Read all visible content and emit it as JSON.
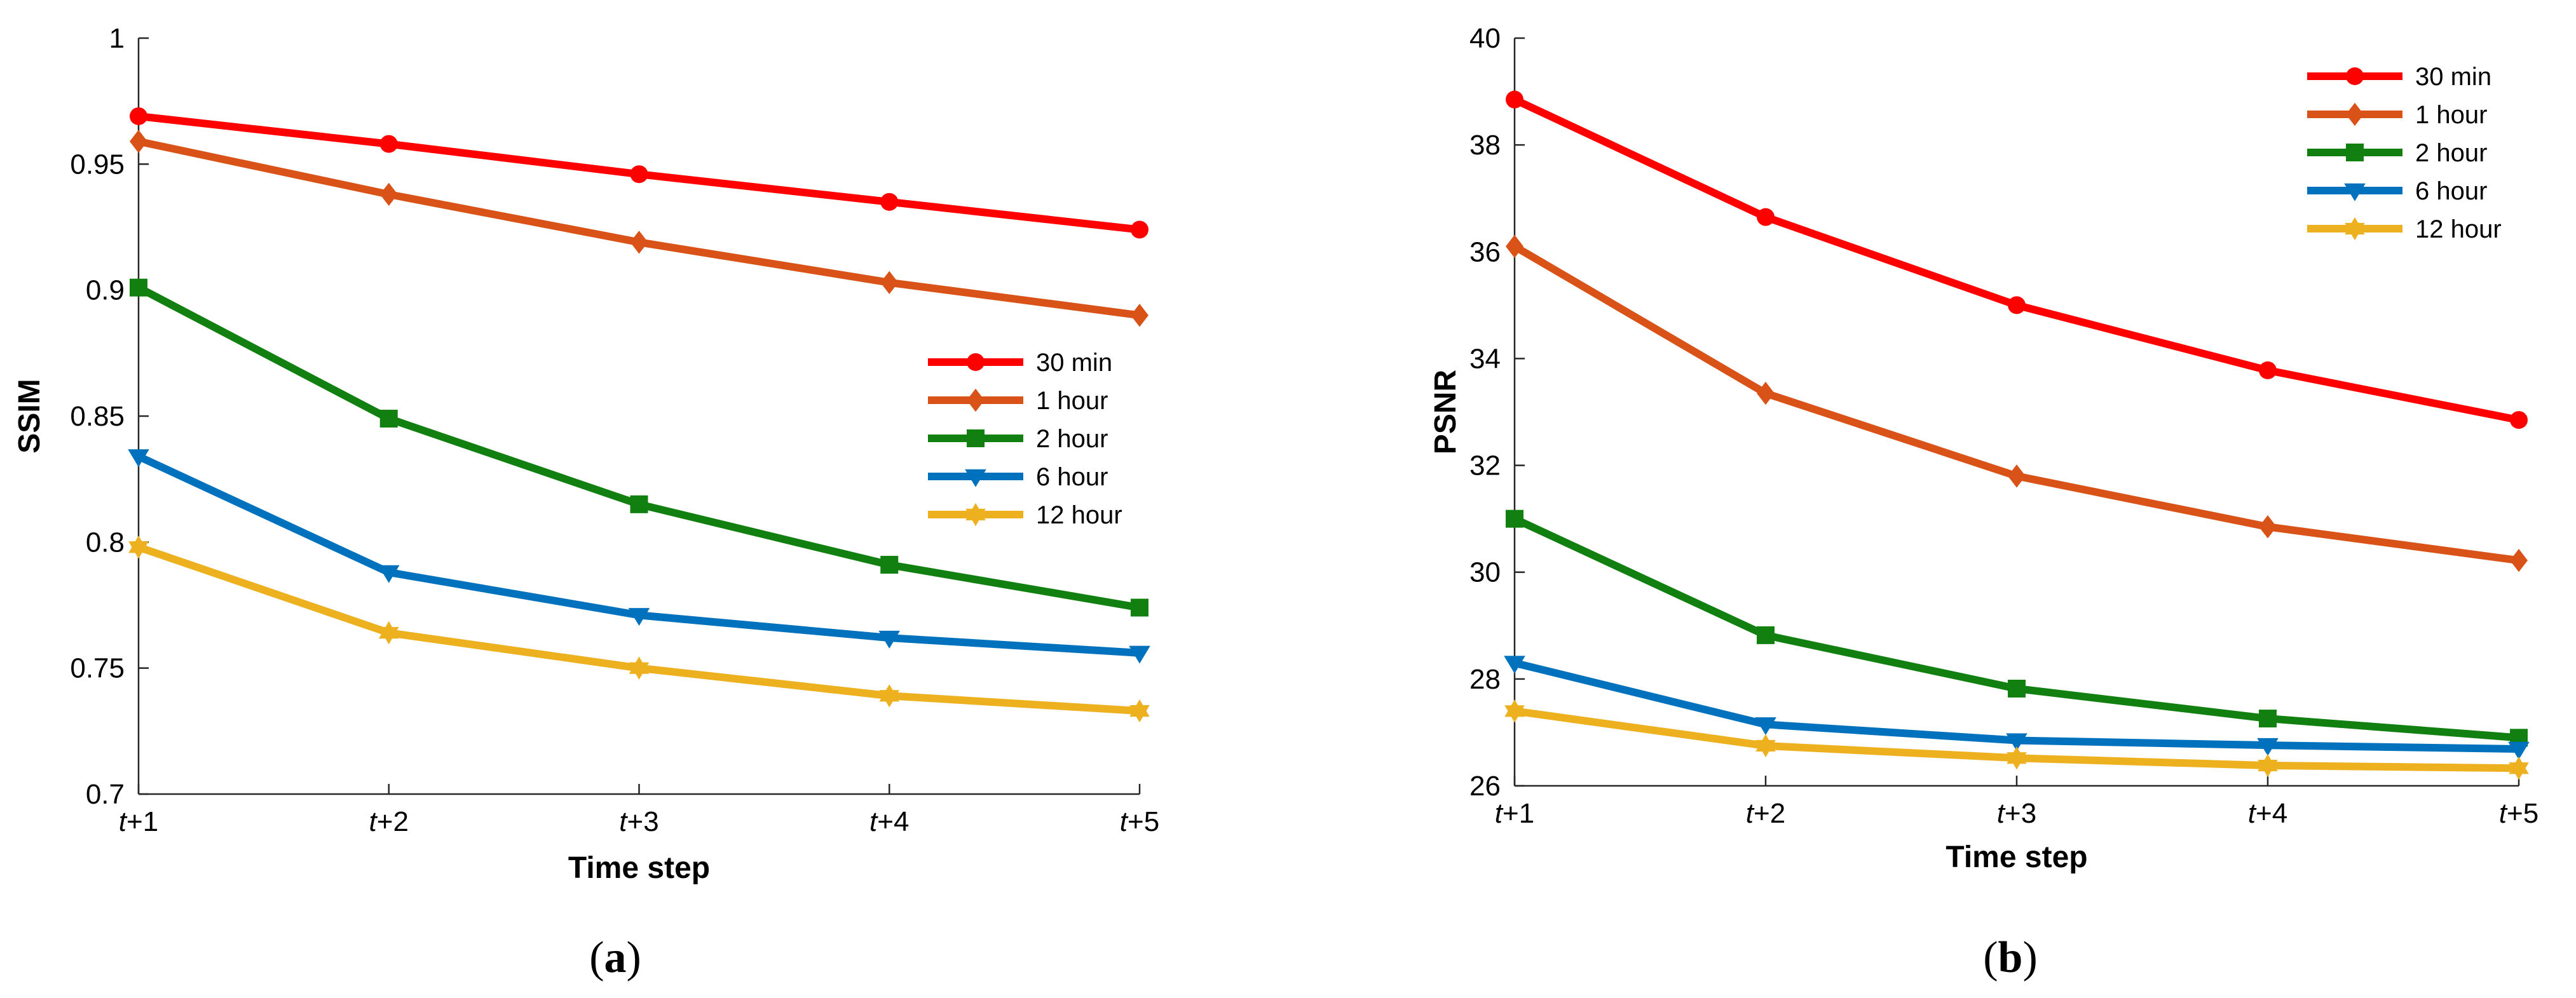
{
  "chart_data": [
    {
      "type": "line",
      "panel_label": "a",
      "xlabel": "Time step",
      "ylabel": "SSIM",
      "categories": [
        {
          "var": "t",
          "suffix": "+1"
        },
        {
          "var": "t",
          "suffix": "+2"
        },
        {
          "var": "t",
          "suffix": "+3"
        },
        {
          "var": "t",
          "suffix": "+4"
        },
        {
          "var": "t",
          "suffix": "+5"
        }
      ],
      "ylim": [
        0.7,
        1
      ],
      "yticks": [
        "0.7",
        "0.75",
        "0.8",
        "0.85",
        "0.9",
        "0.95",
        "1"
      ],
      "legend_position": "center-right",
      "series": [
        {
          "name": "30 min",
          "color": "#ff0000",
          "marker": "circle",
          "values": [
            0.969,
            0.958,
            0.946,
            0.935,
            0.924
          ]
        },
        {
          "name": "1 hour",
          "color": "#d95319",
          "marker": "diamond",
          "values": [
            0.959,
            0.938,
            0.919,
            0.903,
            0.89
          ]
        },
        {
          "name": "2 hour",
          "color": "#118011",
          "marker": "square",
          "values": [
            0.901,
            0.849,
            0.815,
            0.791,
            0.774
          ]
        },
        {
          "name": "6 hour",
          "color": "#0072bd",
          "marker": "triangle-down",
          "values": [
            0.834,
            0.788,
            0.771,
            0.762,
            0.756
          ]
        },
        {
          "name": "12 hour",
          "color": "#edb120",
          "marker": "hexagram",
          "values": [
            0.798,
            0.764,
            0.75,
            0.739,
            0.733
          ]
        }
      ]
    },
    {
      "type": "line",
      "panel_label": "b",
      "xlabel": "Time step",
      "ylabel": "PSNR",
      "categories": [
        {
          "var": "t",
          "suffix": "+1"
        },
        {
          "var": "t",
          "suffix": "+2"
        },
        {
          "var": "t",
          "suffix": "+3"
        },
        {
          "var": "t",
          "suffix": "+4"
        },
        {
          "var": "t",
          "suffix": "+5"
        }
      ],
      "ylim": [
        26,
        40
      ],
      "yticks": [
        "26",
        "28",
        "30",
        "32",
        "34",
        "36",
        "38",
        "40"
      ],
      "legend_position": "top-right",
      "series": [
        {
          "name": "30 min",
          "color": "#ff0000",
          "marker": "circle",
          "values": [
            38.85,
            36.65,
            35.0,
            33.78,
            32.85
          ]
        },
        {
          "name": "1 hour",
          "color": "#d95319",
          "marker": "diamond",
          "values": [
            36.1,
            33.35,
            31.8,
            30.85,
            30.22
          ]
        },
        {
          "name": "2 hour",
          "color": "#118011",
          "marker": "square",
          "values": [
            31.0,
            28.82,
            27.82,
            27.26,
            26.9
          ]
        },
        {
          "name": "6 hour",
          "color": "#0072bd",
          "marker": "triangle-down",
          "values": [
            28.3,
            27.15,
            26.85,
            26.76,
            26.69
          ]
        },
        {
          "name": "12 hour",
          "color": "#edb120",
          "marker": "hexagram",
          "values": [
            27.4,
            26.75,
            26.52,
            26.38,
            26.33
          ]
        }
      ]
    }
  ]
}
